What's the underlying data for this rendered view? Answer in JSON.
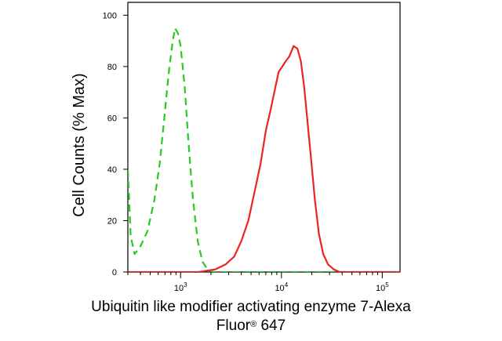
{
  "chart_data": {
    "type": "line",
    "title": "",
    "ylabel": "Cell Counts (% Max)",
    "xlabel_line1": "Ubiquitin like modifier activating enzyme 7-Alexa",
    "xlabel_line2_pre": "Fluor",
    "xlabel_line2_sup": "®",
    "xlabel_line2_post": " 647",
    "x_scale": "log",
    "xlim": [
      300,
      150000
    ],
    "ylim": [
      0,
      105
    ],
    "y_ticks": [
      0,
      20,
      40,
      60,
      80,
      100
    ],
    "x_ticks": [
      {
        "value": 1000,
        "base": "10",
        "exp": "3"
      },
      {
        "value": 10000,
        "base": "10",
        "exp": "4"
      },
      {
        "value": 100000,
        "base": "10",
        "exp": "5"
      }
    ],
    "legend": "none",
    "grid": false,
    "series": [
      {
        "color": "#22cc22",
        "dash": true,
        "points": [
          [
            300,
            40
          ],
          [
            320,
            14
          ],
          [
            350,
            7
          ],
          [
            400,
            10
          ],
          [
            470,
            16
          ],
          [
            550,
            28
          ],
          [
            620,
            42
          ],
          [
            690,
            60
          ],
          [
            760,
            77
          ],
          [
            830,
            89
          ],
          [
            880,
            95
          ],
          [
            940,
            93
          ],
          [
            1000,
            88
          ],
          [
            1100,
            72
          ],
          [
            1200,
            50
          ],
          [
            1330,
            28
          ],
          [
            1480,
            12
          ],
          [
            1650,
            4
          ],
          [
            1850,
            1
          ],
          [
            2100,
            0
          ],
          [
            3000,
            0
          ],
          [
            10000,
            0
          ],
          [
            50000,
            0
          ],
          [
            150000,
            0
          ]
        ]
      },
      {
        "color": "#ee2222",
        "dash": false,
        "points": [
          [
            300,
            0
          ],
          [
            1500,
            0
          ],
          [
            2200,
            1
          ],
          [
            2800,
            3
          ],
          [
            3400,
            6
          ],
          [
            4000,
            12
          ],
          [
            4700,
            20
          ],
          [
            5400,
            31
          ],
          [
            6200,
            42
          ],
          [
            7000,
            55
          ],
          [
            7800,
            63
          ],
          [
            8600,
            71
          ],
          [
            9400,
            78
          ],
          [
            10200,
            80
          ],
          [
            11000,
            82
          ],
          [
            12000,
            84
          ],
          [
            13200,
            88
          ],
          [
            14400,
            87
          ],
          [
            15600,
            82
          ],
          [
            16800,
            72
          ],
          [
            18200,
            58
          ],
          [
            19800,
            43
          ],
          [
            21500,
            28
          ],
          [
            23500,
            15
          ],
          [
            26000,
            7
          ],
          [
            29000,
            3
          ],
          [
            33000,
            1
          ],
          [
            38000,
            0
          ],
          [
            150000,
            0
          ]
        ]
      }
    ]
  }
}
